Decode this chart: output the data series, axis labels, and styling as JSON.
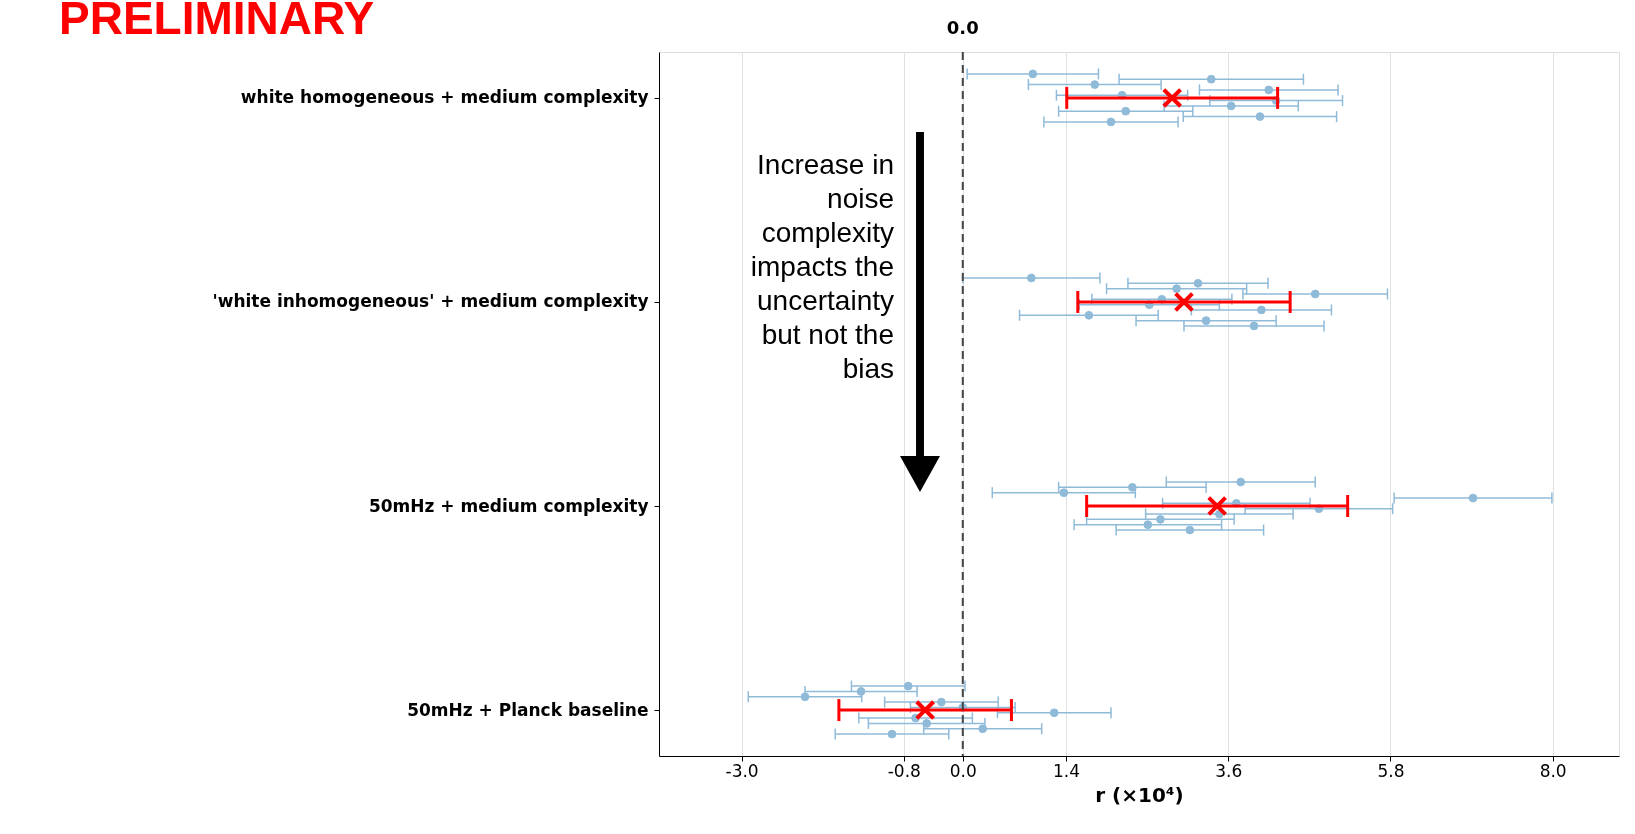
{
  "chart_data": {
    "type": "scatter",
    "orientation": "horizontal",
    "title": "PRELIMINARY",
    "xlabel": "r (×10⁴)",
    "annotations": [
      "Increase in\nnoise\ncomplexity\nimpacts the\nuncertainty\nbut not the\nbias"
    ],
    "categories": [
      "white homogeneous + medium complexity",
      "'white inhomogeneous' + medium complexity",
      "50mHz + medium complexity",
      "50mHz + Planck baseline"
    ],
    "xlim": [
      -4.12,
      8.9
    ],
    "xticks": [
      {
        "value": -3,
        "label": "-3.0"
      },
      -0.8,
      {
        "value": 0,
        "label": "0.0"
      },
      1.4,
      3.6,
      5.8,
      {
        "value": 8,
        "label": "8.0"
      }
    ],
    "grid": "x",
    "ref_lines": [
      {
        "axis": "x",
        "value": 0,
        "label": "0.0",
        "color": "#444444",
        "line_style": "dashed"
      }
    ],
    "series": [
      {
        "color": "#8fbbd9",
        "marker": "circle",
        "x": [
          "white homogeneous + medium complexity",
          "white homogeneous + medium complexity",
          "white homogeneous + medium complexity",
          "white homogeneous + medium complexity",
          "white homogeneous + medium complexity",
          "white homogeneous + medium complexity",
          "white homogeneous + medium complexity",
          "white homogeneous + medium complexity",
          "white homogeneous + medium complexity",
          "white homogeneous + medium complexity",
          "'white inhomogeneous' + medium complexity",
          "'white inhomogeneous' + medium complexity",
          "'white inhomogeneous' + medium complexity",
          "'white inhomogeneous' + medium complexity",
          "'white inhomogeneous' + medium complexity",
          "'white inhomogeneous' + medium complexity",
          "'white inhomogeneous' + medium complexity",
          "'white inhomogeneous' + medium complexity",
          "'white inhomogeneous' + medium complexity",
          "'white inhomogeneous' + medium complexity",
          "50mHz + medium complexity",
          "50mHz + medium complexity",
          "50mHz + medium complexity",
          "50mHz + medium complexity",
          "50mHz + medium complexity",
          "50mHz + medium complexity",
          "50mHz + medium complexity",
          "50mHz + medium complexity",
          "50mHz + medium complexity",
          "50mHz + medium complexity",
          "50mHz + Planck baseline",
          "50mHz + Planck baseline",
          "50mHz + Planck baseline",
          "50mHz + Planck baseline",
          "50mHz + Planck baseline",
          "50mHz + Planck baseline",
          "50mHz + Planck baseline",
          "50mHz + Planck baseline",
          "50mHz + Planck baseline",
          "50mHz + Planck baseline"
        ],
        "values": [
          0.95,
          2.21,
          2.16,
          3.37,
          4.03,
          4.25,
          1.79,
          2.01,
          3.64,
          4.15,
          0.93,
          1.71,
          2.7,
          3.19,
          3.3,
          2.53,
          2.9,
          3.95,
          4.05,
          4.78,
          3.77,
          2.68,
          3.71,
          2.3,
          2.51,
          4.83,
          1.37,
          3.08,
          3.48,
          6.92,
          -0.74,
          -0.49,
          0.0,
          -1.38,
          0.27,
          1.24,
          -2.14,
          -0.96,
          -0.64,
          -0.29
        ],
        "errors": [
          0.89,
          0.91,
          0.89,
          1.25,
          1.04,
          0.9,
          0.9,
          0.91,
          0.91,
          0.94,
          0.93,
          0.94,
          0.95,
          0.95,
          0.95,
          0.95,
          0.95,
          0.95,
          0.95,
          0.98,
          1.01,
          1.0,
          1.0,
          1.0,
          1.0,
          1.0,
          0.97,
          1.0,
          1.0,
          1.07,
          0.77,
          0.79,
          0.71,
          0.76,
          0.8,
          0.77,
          0.77,
          0.77,
          0.77,
          0.77
        ]
      },
      {
        "color": "#ff0000",
        "marker": "cross",
        "x": [
          "white homogeneous + medium complexity",
          "'white inhomogeneous' + medium complexity",
          "50mHz + medium complexity",
          "50mHz + Planck baseline"
        ],
        "values": [
          2.84,
          3.0,
          3.45,
          -0.51
        ],
        "errors": [
          1.43,
          1.44,
          1.77,
          1.17
        ]
      }
    ]
  }
}
